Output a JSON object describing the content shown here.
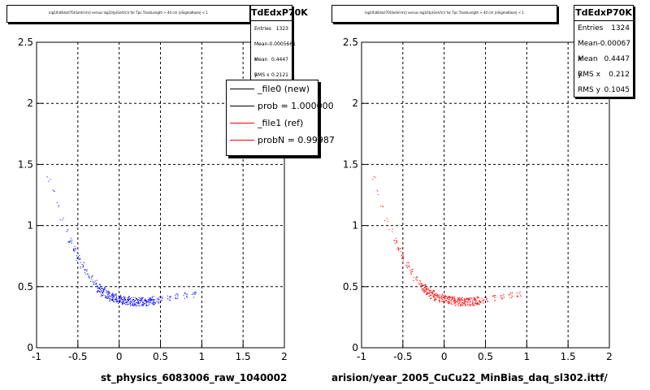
{
  "colors": {
    "new": "#0000ff",
    "ref": "#ff0000",
    "grid": "#000000"
  },
  "left_panel": {
    "title": "log10(dEdx(I70)(keV/cm)) versus log10(p(GeV/c)) for Tpc.TrackLength > 40 cm |nSigmaKaon| < 1",
    "stats": {
      "name": "TdEdxP70K",
      "rows": [
        {
          "label": "Entries",
          "value": "1323"
        },
        {
          "label": "Mean x",
          "value": "-0.0005661"
        },
        {
          "label": "Mean y",
          "value": "0.4447"
        },
        {
          "label": "RMS x",
          "value": "0.2121"
        }
      ]
    },
    "legend": [
      {
        "label": "_file0 (new)",
        "color": "#000000"
      },
      {
        "label": "prob = 1.000000",
        "color": "#000000"
      },
      {
        "label": "_file1 (ref)",
        "color": "#ff0000"
      },
      {
        "label": "probN = 0.99987",
        "color": "#ff0000"
      }
    ],
    "x_title": "st_physics_6083006_raw_1040002"
  },
  "right_panel": {
    "title": "log10(dEdx(I70)(keV/cm)) versus log10(p(GeV/c)) for Tpc.TrackLength > 40 cm |nSigmaKaon| < 1",
    "stats": {
      "name": "TdEdxP70K",
      "rows": [
        {
          "label": "Entries",
          "value": "1324"
        },
        {
          "label": "Mean x",
          "value": "-0.00067"
        },
        {
          "label": "Mean y",
          "value": "0.4447"
        },
        {
          "label": "RMS x",
          "value": "0.212"
        },
        {
          "label": "RMS y",
          "value": "0.1045"
        }
      ]
    },
    "x_title": "arision/year_2005_CuCu22_MinBias_daq_sl302.ittf/"
  },
  "chart_data": [
    {
      "type": "scatter",
      "title": "log10(dEdx(I70)(keV/cm)) versus log10(p(GeV/c)) for Tpc.TrackLength > 40 cm |nSigmaKaon| < 1",
      "xlabel": "st_physics_6083006_raw_1040002",
      "ylabel": "",
      "xlim": [
        -1,
        2
      ],
      "ylim": [
        0,
        2.5
      ],
      "xticks": [
        "-1",
        "-0.5",
        "0",
        "0.5",
        "1",
        "1.5",
        "2"
      ],
      "yticks": [
        "0",
        "0.5",
        "1",
        "1.5",
        "2",
        "2.5"
      ],
      "grid": true,
      "series": [
        {
          "name": "_file0 (new)",
          "color": "#0000ff",
          "points": [
            [
              -0.85,
              1.38
            ],
            [
              -0.8,
              1.28
            ],
            [
              -0.75,
              1.18
            ],
            [
              -0.7,
              1.05
            ],
            [
              -0.65,
              0.95
            ],
            [
              -0.6,
              0.88
            ],
            [
              -0.55,
              0.81
            ],
            [
              -0.5,
              0.74
            ],
            [
              -0.45,
              0.68
            ],
            [
              -0.4,
              0.62
            ],
            [
              -0.35,
              0.57
            ],
            [
              -0.3,
              0.53
            ],
            [
              -0.25,
              0.49
            ],
            [
              -0.2,
              0.46
            ],
            [
              -0.15,
              0.44
            ],
            [
              -0.1,
              0.42
            ],
            [
              -0.05,
              0.41
            ],
            [
              0.0,
              0.4
            ],
            [
              0.05,
              0.39
            ],
            [
              0.1,
              0.39
            ],
            [
              0.15,
              0.38
            ],
            [
              0.2,
              0.38
            ],
            [
              0.25,
              0.38
            ],
            [
              0.3,
              0.38
            ],
            [
              0.35,
              0.38
            ],
            [
              0.4,
              0.39
            ],
            [
              0.45,
              0.39
            ],
            [
              0.5,
              0.4
            ],
            [
              0.6,
              0.41
            ],
            [
              0.7,
              0.42
            ],
            [
              0.8,
              0.43
            ],
            [
              0.9,
              0.44
            ]
          ]
        }
      ]
    },
    {
      "type": "scatter",
      "title": "log10(dEdx(I70)(keV/cm)) versus log10(p(GeV/c)) for Tpc.TrackLength > 40 cm |nSigmaKaon| < 1",
      "xlabel": "arision/year_2005_CuCu22_MinBias_daq_sl302.ittf/",
      "ylabel": "",
      "xlim": [
        -1,
        2
      ],
      "ylim": [
        0,
        2.5
      ],
      "xticks": [
        "-1",
        "-0.5",
        "0",
        "0.5",
        "1",
        "1.5",
        "2"
      ],
      "yticks": [
        "0",
        "0.5",
        "1",
        "1.5",
        "2",
        "2.5"
      ],
      "grid": true,
      "series": [
        {
          "name": "_file1 (ref)",
          "color": "#ff0000",
          "points": [
            [
              -0.85,
              1.38
            ],
            [
              -0.8,
              1.28
            ],
            [
              -0.75,
              1.18
            ],
            [
              -0.7,
              1.05
            ],
            [
              -0.65,
              0.95
            ],
            [
              -0.6,
              0.88
            ],
            [
              -0.55,
              0.81
            ],
            [
              -0.5,
              0.74
            ],
            [
              -0.45,
              0.68
            ],
            [
              -0.4,
              0.62
            ],
            [
              -0.35,
              0.57
            ],
            [
              -0.3,
              0.53
            ],
            [
              -0.25,
              0.49
            ],
            [
              -0.2,
              0.46
            ],
            [
              -0.15,
              0.44
            ],
            [
              -0.1,
              0.42
            ],
            [
              -0.05,
              0.41
            ],
            [
              0.0,
              0.4
            ],
            [
              0.05,
              0.39
            ],
            [
              0.1,
              0.39
            ],
            [
              0.15,
              0.38
            ],
            [
              0.2,
              0.38
            ],
            [
              0.25,
              0.38
            ],
            [
              0.3,
              0.38
            ],
            [
              0.35,
              0.38
            ],
            [
              0.4,
              0.39
            ],
            [
              0.45,
              0.39
            ],
            [
              0.5,
              0.4
            ],
            [
              0.6,
              0.41
            ],
            [
              0.7,
              0.42
            ],
            [
              0.8,
              0.43
            ],
            [
              0.9,
              0.44
            ]
          ]
        }
      ]
    }
  ]
}
